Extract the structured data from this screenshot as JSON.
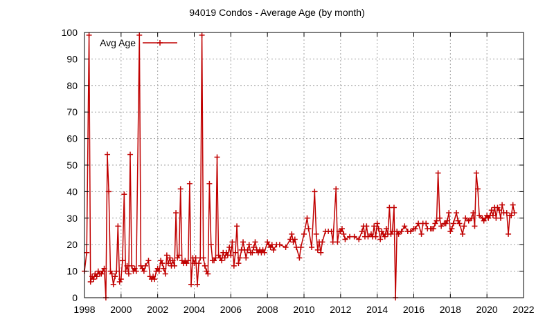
{
  "chart_data": {
    "type": "line",
    "title": "94019 Condos - Average Age (by month)",
    "xlabel": "",
    "ylabel": "",
    "xlim": [
      1998,
      2022
    ],
    "ylim": [
      0,
      100
    ],
    "x_ticks": [
      "1998",
      "2000",
      "2002",
      "2004",
      "2006",
      "2008",
      "2010",
      "2012",
      "2014",
      "2016",
      "2018",
      "2020",
      "2022"
    ],
    "y_ticks": [
      "0",
      "10",
      "20",
      "30",
      "40",
      "50",
      "60",
      "70",
      "80",
      "90",
      "100"
    ],
    "grid": true,
    "legend": "top-left",
    "series": [
      {
        "name": "Avg Age",
        "color": "#c00000",
        "marker": "plus",
        "points": [
          [
            1998.0,
            10
          ],
          [
            1998.12,
            17
          ],
          [
            1998.25,
            99
          ],
          [
            1998.33,
            6
          ],
          [
            1998.42,
            8
          ],
          [
            1998.5,
            7
          ],
          [
            1998.58,
            9
          ],
          [
            1998.67,
            8
          ],
          [
            1998.75,
            10
          ],
          [
            1998.83,
            9
          ],
          [
            1998.92,
            9
          ],
          [
            1999.0,
            10
          ],
          [
            1999.08,
            11
          ],
          [
            1999.17,
            0
          ],
          [
            1999.25,
            54
          ],
          [
            1999.33,
            40
          ],
          [
            1999.42,
            10
          ],
          [
            1999.5,
            9
          ],
          [
            1999.58,
            5
          ],
          [
            1999.67,
            8
          ],
          [
            1999.75,
            10
          ],
          [
            1999.83,
            27
          ],
          [
            1999.92,
            6
          ],
          [
            2000.0,
            7
          ],
          [
            2000.08,
            14
          ],
          [
            2000.17,
            39
          ],
          [
            2000.25,
            10
          ],
          [
            2000.33,
            12
          ],
          [
            2000.42,
            9
          ],
          [
            2000.5,
            54
          ],
          [
            2000.58,
            12
          ],
          [
            2000.67,
            10
          ],
          [
            2000.75,
            11
          ],
          [
            2000.83,
            10
          ],
          [
            2001.0,
            99
          ],
          [
            2001.08,
            12
          ],
          [
            2001.17,
            11
          ],
          [
            2001.25,
            10
          ],
          [
            2001.33,
            12
          ],
          [
            2001.5,
            14
          ],
          [
            2001.58,
            8
          ],
          [
            2001.67,
            7
          ],
          [
            2001.75,
            8
          ],
          [
            2001.83,
            7
          ],
          [
            2001.92,
            10
          ],
          [
            2002.0,
            11
          ],
          [
            2002.08,
            10
          ],
          [
            2002.17,
            14
          ],
          [
            2002.25,
            13
          ],
          [
            2002.33,
            11
          ],
          [
            2002.42,
            9
          ],
          [
            2002.5,
            16
          ],
          [
            2002.58,
            13
          ],
          [
            2002.67,
            15
          ],
          [
            2002.75,
            12
          ],
          [
            2002.83,
            14
          ],
          [
            2002.92,
            12
          ],
          [
            2003.0,
            32
          ],
          [
            2003.08,
            15
          ],
          [
            2003.17,
            16
          ],
          [
            2003.25,
            41
          ],
          [
            2003.33,
            14
          ],
          [
            2003.42,
            13
          ],
          [
            2003.5,
            14
          ],
          [
            2003.58,
            13
          ],
          [
            2003.67,
            14
          ],
          [
            2003.75,
            43
          ],
          [
            2003.83,
            5
          ],
          [
            2003.92,
            15
          ],
          [
            2004.0,
            13
          ],
          [
            2004.08,
            15
          ],
          [
            2004.17,
            5
          ],
          [
            2004.25,
            13
          ],
          [
            2004.33,
            15
          ],
          [
            2004.42,
            99
          ],
          [
            2004.5,
            15
          ],
          [
            2004.58,
            12
          ],
          [
            2004.67,
            10
          ],
          [
            2004.75,
            9
          ],
          [
            2004.83,
            43
          ],
          [
            2004.92,
            20
          ],
          [
            2005.0,
            14
          ],
          [
            2005.08,
            14
          ],
          [
            2005.17,
            15
          ],
          [
            2005.25,
            53
          ],
          [
            2005.33,
            16
          ],
          [
            2005.42,
            15
          ],
          [
            2005.5,
            14
          ],
          [
            2005.58,
            17
          ],
          [
            2005.67,
            15
          ],
          [
            2005.75,
            17
          ],
          [
            2005.83,
            16
          ],
          [
            2005.92,
            19
          ],
          [
            2006.0,
            16
          ],
          [
            2006.08,
            21
          ],
          [
            2006.17,
            12
          ],
          [
            2006.25,
            17
          ],
          [
            2006.33,
            27
          ],
          [
            2006.42,
            13
          ],
          [
            2006.5,
            15
          ],
          [
            2006.58,
            18
          ],
          [
            2006.67,
            21
          ],
          [
            2006.75,
            18
          ],
          [
            2006.83,
            15
          ],
          [
            2006.92,
            18
          ],
          [
            2007.0,
            20
          ],
          [
            2007.08,
            17
          ],
          [
            2007.17,
            17
          ],
          [
            2007.25,
            19
          ],
          [
            2007.33,
            21
          ],
          [
            2007.42,
            18
          ],
          [
            2007.5,
            17
          ],
          [
            2007.58,
            18
          ],
          [
            2007.67,
            17
          ],
          [
            2007.75,
            18
          ],
          [
            2007.83,
            17
          ],
          [
            2008.0,
            21
          ],
          [
            2008.08,
            20
          ],
          [
            2008.17,
            19
          ],
          [
            2008.25,
            20
          ],
          [
            2008.33,
            18
          ],
          [
            2008.5,
            20
          ],
          [
            2008.67,
            20
          ],
          [
            2009.0,
            19
          ],
          [
            2009.25,
            22
          ],
          [
            2009.33,
            24
          ],
          [
            2009.42,
            21
          ],
          [
            2009.5,
            22
          ],
          [
            2009.58,
            19
          ],
          [
            2009.75,
            15
          ],
          [
            2009.83,
            19
          ],
          [
            2010.0,
            24
          ],
          [
            2010.17,
            30
          ],
          [
            2010.25,
            26
          ],
          [
            2010.42,
            19
          ],
          [
            2010.58,
            40
          ],
          [
            2010.67,
            24
          ],
          [
            2010.75,
            18
          ],
          [
            2010.83,
            21
          ],
          [
            2010.92,
            17
          ],
          [
            2011.0,
            21
          ],
          [
            2011.17,
            25
          ],
          [
            2011.33,
            25
          ],
          [
            2011.5,
            25
          ],
          [
            2011.58,
            21
          ],
          [
            2011.75,
            41
          ],
          [
            2011.83,
            21
          ],
          [
            2011.92,
            25
          ],
          [
            2012.0,
            25
          ],
          [
            2012.08,
            26
          ],
          [
            2012.17,
            24
          ],
          [
            2012.25,
            22
          ],
          [
            2012.5,
            23
          ],
          [
            2012.75,
            23
          ],
          [
            2013.0,
            22
          ],
          [
            2013.17,
            25
          ],
          [
            2013.25,
            27
          ],
          [
            2013.33,
            23
          ],
          [
            2013.42,
            27
          ],
          [
            2013.5,
            23
          ],
          [
            2013.67,
            24
          ],
          [
            2013.75,
            23
          ],
          [
            2013.83,
            27
          ],
          [
            2013.92,
            23
          ],
          [
            2014.0,
            28
          ],
          [
            2014.08,
            26
          ],
          [
            2014.17,
            22
          ],
          [
            2014.25,
            25
          ],
          [
            2014.33,
            24
          ],
          [
            2014.42,
            23
          ],
          [
            2014.5,
            26
          ],
          [
            2014.58,
            24
          ],
          [
            2014.67,
            34
          ],
          [
            2014.75,
            24
          ],
          [
            2014.83,
            25
          ],
          [
            2014.92,
            34
          ],
          [
            2015.0,
            0
          ],
          [
            2015.08,
            25
          ],
          [
            2015.17,
            24
          ],
          [
            2015.33,
            25
          ],
          [
            2015.5,
            27
          ],
          [
            2015.67,
            25
          ],
          [
            2015.83,
            25
          ],
          [
            2016.0,
            26
          ],
          [
            2016.08,
            26
          ],
          [
            2016.25,
            28
          ],
          [
            2016.42,
            24
          ],
          [
            2016.5,
            28
          ],
          [
            2016.67,
            28
          ],
          [
            2016.75,
            26
          ],
          [
            2016.92,
            26
          ],
          [
            2017.0,
            26
          ],
          [
            2017.08,
            26
          ],
          [
            2017.17,
            28
          ],
          [
            2017.25,
            29
          ],
          [
            2017.33,
            47
          ],
          [
            2017.42,
            30
          ],
          [
            2017.5,
            27
          ],
          [
            2017.67,
            28
          ],
          [
            2017.75,
            28
          ],
          [
            2017.83,
            29
          ],
          [
            2017.92,
            32
          ],
          [
            2018.0,
            25
          ],
          [
            2018.08,
            26
          ],
          [
            2018.17,
            28
          ],
          [
            2018.33,
            32
          ],
          [
            2018.42,
            29
          ],
          [
            2018.5,
            28
          ],
          [
            2018.67,
            24
          ],
          [
            2018.75,
            27
          ],
          [
            2018.83,
            30
          ],
          [
            2019.0,
            29
          ],
          [
            2019.17,
            30
          ],
          [
            2019.25,
            32
          ],
          [
            2019.33,
            27
          ],
          [
            2019.42,
            47
          ],
          [
            2019.5,
            41
          ],
          [
            2019.58,
            31
          ],
          [
            2019.75,
            30
          ],
          [
            2019.83,
            29
          ],
          [
            2019.92,
            30
          ],
          [
            2020.0,
            31
          ],
          [
            2020.08,
            30
          ],
          [
            2020.17,
            31
          ],
          [
            2020.25,
            33
          ],
          [
            2020.33,
            31
          ],
          [
            2020.42,
            34
          ],
          [
            2020.5,
            30
          ],
          [
            2020.58,
            34
          ],
          [
            2020.67,
            33
          ],
          [
            2020.75,
            30
          ],
          [
            2020.83,
            35
          ],
          [
            2020.92,
            32
          ],
          [
            2021.08,
            32
          ],
          [
            2021.17,
            24
          ],
          [
            2021.25,
            31
          ],
          [
            2021.33,
            31
          ],
          [
            2021.42,
            35
          ],
          [
            2021.5,
            32
          ]
        ]
      }
    ]
  }
}
